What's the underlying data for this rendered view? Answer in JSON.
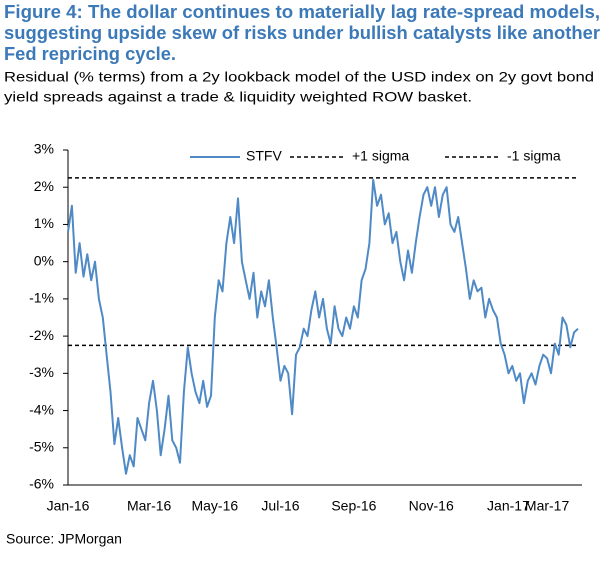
{
  "chart_data": {
    "type": "line",
    "title": [
      "Figure 4: The dollar continues to materially lag rate-spread models,",
      "suggesting upside skew of risks under bullish catalysts like another",
      "Fed repricing cycle."
    ],
    "subtitle": [
      "Residual (% terms) from a 2y lookback model of the USD index on 2y govt bond",
      "yield spreads against a trade & liquidity weighted ROW basket."
    ],
    "source": "Source: JPMorgan",
    "categories": [
      "Jan-16",
      null,
      null,
      null,
      null,
      null,
      null,
      null,
      null,
      null,
      null,
      null,
      null,
      null,
      null,
      null,
      null,
      null,
      null,
      null,
      null,
      "Mar-16",
      null,
      null,
      null,
      null,
      null,
      null,
      null,
      null,
      null,
      null,
      null,
      null,
      null,
      null,
      null,
      null,
      "May-16",
      null,
      null,
      null,
      null,
      null,
      null,
      null,
      null,
      null,
      null,
      null,
      null,
      null,
      null,
      null,
      null,
      "Jul-16",
      null,
      null,
      null,
      null,
      null,
      null,
      null,
      null,
      null,
      null,
      null,
      null,
      null,
      null,
      null,
      null,
      null,
      null,
      "Sep-16",
      null,
      null,
      null,
      null,
      null,
      null,
      null,
      null,
      null,
      null,
      null,
      null,
      null,
      null,
      null,
      null,
      null,
      null,
      null,
      "Nov-16",
      null,
      null,
      null,
      null,
      null,
      null,
      null,
      null,
      null,
      null,
      null,
      null,
      null,
      null,
      null,
      null,
      null,
      null,
      null,
      "Jan-17",
      null,
      null,
      null,
      null,
      null,
      null,
      null,
      null,
      null,
      "Mar-17",
      null,
      null,
      null,
      null,
      null,
      null,
      null,
      null
    ],
    "series": [
      {
        "name": "STFV",
        "color": "#4f8ac6",
        "values": [
          0.8,
          1.5,
          -0.3,
          0.5,
          -0.4,
          0.2,
          -0.5,
          0.0,
          -1.0,
          -1.5,
          -2.5,
          -3.5,
          -4.9,
          -4.2,
          -5.0,
          -5.7,
          -5.2,
          -5.5,
          -4.2,
          -4.5,
          -4.8,
          -3.8,
          -3.2,
          -4.0,
          -5.2,
          -4.5,
          -3.6,
          -4.8,
          -5.0,
          -5.4,
          -3.5,
          -2.3,
          -3.0,
          -3.5,
          -3.8,
          -3.2,
          -3.9,
          -3.6,
          -1.5,
          -0.5,
          -0.8,
          0.5,
          1.2,
          0.5,
          1.7,
          0.0,
          -0.5,
          -1.0,
          -0.3,
          -1.5,
          -0.8,
          -1.2,
          -0.5,
          -1.5,
          -2.3,
          -3.2,
          -2.8,
          -3.0,
          -4.1,
          -2.5,
          -2.3,
          -1.8,
          -2.0,
          -1.3,
          -0.8,
          -1.5,
          -1.0,
          -1.8,
          -2.2,
          -1.2,
          -1.8,
          -2.0,
          -1.5,
          -1.8,
          -1.2,
          -1.5,
          -0.5,
          -0.2,
          0.5,
          2.2,
          1.5,
          1.8,
          1.0,
          1.3,
          0.5,
          0.8,
          0.0,
          -0.5,
          0.3,
          -0.3,
          0.5,
          1.2,
          1.8,
          2.0,
          1.5,
          2.0,
          1.2,
          1.8,
          2.0,
          1.0,
          0.8,
          1.2,
          0.5,
          -0.2,
          -1.0,
          -0.5,
          -0.8,
          -0.7,
          -1.5,
          -1.0,
          -1.3,
          -1.5,
          -2.2,
          -2.5,
          -3.0,
          -2.8,
          -3.2,
          -3.0,
          -3.8,
          -3.2,
          -3.0,
          -3.3,
          -2.8,
          -2.5,
          -2.6,
          -3.0,
          -2.2,
          -2.5,
          -1.5,
          -1.7,
          -2.3,
          -1.9,
          -1.8
        ]
      }
    ],
    "reference_lines": [
      {
        "name": "+1 sigma",
        "value": 2.25,
        "color": "#000000"
      },
      {
        "name": "-1 sigma",
        "value": -2.25,
        "color": "#000000"
      }
    ],
    "ylim": [
      -6,
      3
    ],
    "yticks": [
      {
        "value": 3,
        "label": "3%"
      },
      {
        "value": 2,
        "label": "2%"
      },
      {
        "value": 1,
        "label": "1%"
      },
      {
        "value": 0,
        "label": "0%"
      },
      {
        "value": -1,
        "label": "-1%"
      },
      {
        "value": -2,
        "label": "-2%"
      },
      {
        "value": -3,
        "label": "-3%"
      },
      {
        "value": -4,
        "label": "-4%"
      },
      {
        "value": -5,
        "label": "-5%"
      },
      {
        "value": -6,
        "label": "-6%"
      }
    ],
    "grid": false
  }
}
